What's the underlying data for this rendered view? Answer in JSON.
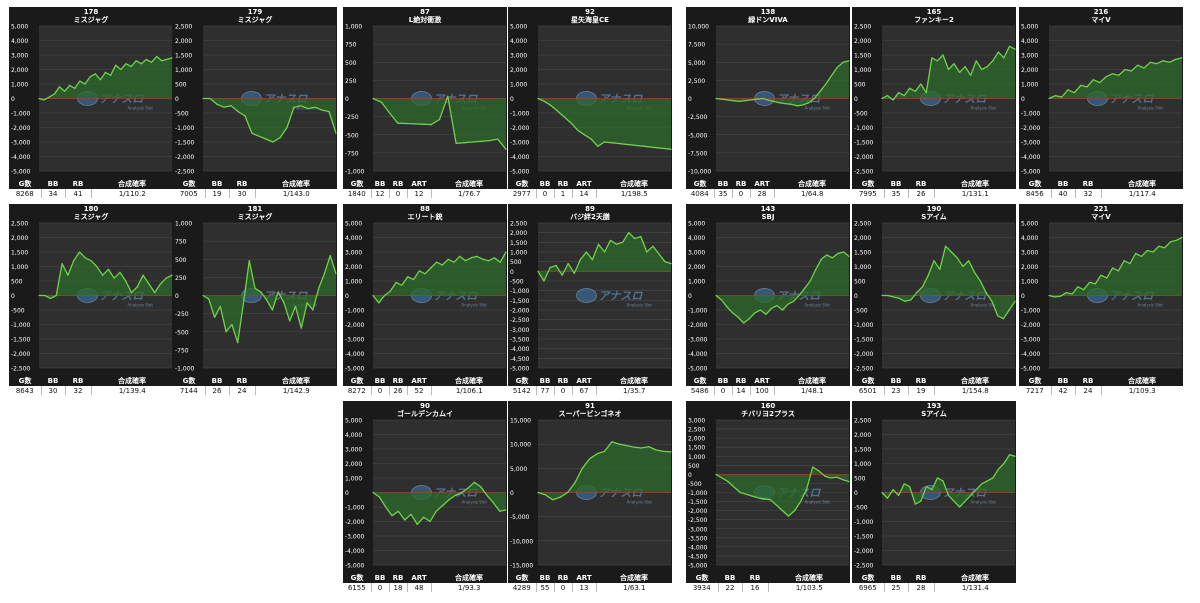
{
  "theme": {
    "panel_bg": "#1a1a1a",
    "plot_bg": "#2f2f2f",
    "grid": "#4a4a4a",
    "zero_line": "#c0392b",
    "line": "#6fd24b",
    "fill": "#2e6a2a",
    "text": "#ffffff",
    "watermark_text": "アナスロ",
    "watermark_sub": "Analysis Slot"
  },
  "chart_data": [
    {
      "type": "line",
      "machine_no": "178",
      "title": "ミスジャグ",
      "ylim": [
        -5000,
        5000
      ],
      "ystep": 1000,
      "values": [
        0,
        -100,
        100,
        300,
        800,
        500,
        900,
        700,
        1200,
        1000,
        1500,
        1700,
        1300,
        1800,
        1600,
        2300,
        2000,
        2400,
        2200,
        2600,
        2400,
        2700,
        2500,
        2900,
        2600,
        2700,
        2800
      ],
      "stats": {
        "headers": [
          "G数",
          "BB",
          "RB",
          "合成確率"
        ],
        "values": [
          "8268",
          "34",
          "41",
          "1/110.2"
        ]
      }
    },
    {
      "type": "line",
      "machine_no": "179",
      "title": "ミスジャグ",
      "ylim": [
        -2500,
        2500
      ],
      "ystep": 500,
      "values": [
        0,
        0,
        -200,
        -300,
        -250,
        -450,
        -600,
        -1200,
        -1300,
        -1400,
        -1500,
        -1350,
        -1000,
        -300,
        -250,
        -350,
        -300,
        -400,
        -450,
        -1200
      ],
      "stats": {
        "headers": [
          "G数",
          "BB",
          "RB",
          "合成確率"
        ],
        "values": [
          "7005",
          "19",
          "30",
          "1/143.0"
        ]
      }
    },
    {
      "type": "line",
      "machine_no": "87",
      "title": "L絶対衝激",
      "ylim": [
        -1000,
        1000
      ],
      "ystep": 250,
      "values": [
        0,
        -50,
        -200,
        -340,
        -345,
        -350,
        -355,
        -360,
        -290,
        30,
        -620,
        -610,
        -600,
        -590,
        -580,
        -560,
        -700
      ],
      "stats": {
        "headers": [
          "G数",
          "BB",
          "RB",
          "ART",
          "合成確率"
        ],
        "values": [
          "1840",
          "12",
          "0",
          "12",
          "1/76.7"
        ]
      }
    },
    {
      "type": "line",
      "machine_no": "92",
      "title": "星矢海皇CE",
      "ylim": [
        -5000,
        5000
      ],
      "ystep": 1000,
      "values": [
        0,
        -200,
        -500,
        -900,
        -1300,
        -1700,
        -2200,
        -2500,
        -2800,
        -3300,
        -3000,
        -3050,
        -3100,
        -3150,
        -3200,
        -3250,
        -3300,
        -3350,
        -3400,
        -3450,
        -3500
      ],
      "stats": {
        "headers": [
          "G数",
          "BB",
          "RB",
          "ART",
          "合成確率"
        ],
        "values": [
          "2977",
          "0",
          "1",
          "14",
          "1/198.5"
        ]
      }
    },
    {
      "type": "line",
      "machine_no": "138",
      "title": "緑ドンVIVA",
      "ylim": [
        -10000,
        10000
      ],
      "ystep": 2500,
      "values": [
        0,
        -100,
        -200,
        -300,
        -400,
        -300,
        -200,
        -100,
        0,
        -200,
        -400,
        -600,
        -700,
        -800,
        -1000,
        -900,
        -600,
        0,
        1000,
        2000,
        3200,
        4300,
        5000,
        5200
      ],
      "stats": {
        "headers": [
          "G数",
          "BB",
          "RB",
          "ART",
          "合成確率"
        ],
        "values": [
          "4084",
          "35",
          "0",
          "28",
          "1/64.8"
        ]
      }
    },
    {
      "type": "line",
      "machine_no": "165",
      "title": "ファンキー2",
      "ylim": [
        -2500,
        2500
      ],
      "ystep": 500,
      "values": [
        0,
        100,
        -50,
        200,
        100,
        350,
        250,
        500,
        200,
        1400,
        1300,
        1500,
        1000,
        1200,
        900,
        1100,
        800,
        1300,
        1000,
        1100,
        1300,
        1600,
        1400,
        1800,
        1700
      ],
      "stats": {
        "headers": [
          "G数",
          "BB",
          "RB",
          "合成確率"
        ],
        "values": [
          "7995",
          "35",
          "26",
          "1/131.1"
        ]
      }
    },
    {
      "type": "line",
      "machine_no": "216",
      "title": "マイV",
      "ylim": [
        -5000,
        5000
      ],
      "ystep": 1000,
      "values": [
        0,
        200,
        100,
        600,
        400,
        900,
        800,
        1300,
        1100,
        1500,
        1700,
        1600,
        2000,
        1900,
        2300,
        2100,
        2500,
        2400,
        2600,
        2500,
        2700,
        2800
      ],
      "stats": {
        "headers": [
          "G数",
          "BB",
          "RB",
          "合成確率"
        ],
        "values": [
          "8456",
          "40",
          "32",
          "1/117.4"
        ]
      }
    },
    {
      "type": "line",
      "machine_no": "180",
      "title": "ミスジャグ",
      "ylim": [
        -2500,
        2500
      ],
      "ystep": 500,
      "values": [
        0,
        0,
        -100,
        0,
        1100,
        700,
        1200,
        1500,
        1300,
        1200,
        1000,
        700,
        900,
        600,
        800,
        500,
        100,
        300,
        700,
        400,
        100,
        400,
        600,
        700
      ],
      "stats": {
        "headers": [
          "G数",
          "BB",
          "RB",
          "合成確率"
        ],
        "values": [
          "8643",
          "30",
          "32",
          "1/139.4"
        ]
      }
    },
    {
      "type": "line",
      "machine_no": "181",
      "title": "ミスジャグ",
      "ylim": [
        -1000,
        1000
      ],
      "ystep": 250,
      "values": [
        0,
        -50,
        -300,
        -150,
        -500,
        -400,
        -650,
        -100,
        480,
        100,
        50,
        -60,
        -200,
        50,
        -100,
        -350,
        -150,
        -450,
        -100,
        -200,
        100,
        300,
        550,
        300
      ],
      "stats": {
        "headers": [
          "G数",
          "BB",
          "RB",
          "合成確率"
        ],
        "values": [
          "7144",
          "26",
          "24",
          "1/142.9"
        ]
      }
    },
    {
      "type": "line",
      "machine_no": "88",
      "title": "エリート銃",
      "ylim": [
        -5000,
        5000
      ],
      "ystep": 1000,
      "values": [
        0,
        -500,
        0,
        300,
        900,
        700,
        1300,
        1100,
        1700,
        1500,
        1900,
        2300,
        2100,
        2500,
        2300,
        2700,
        2400,
        2600,
        2700,
        2500,
        2400,
        2600,
        2300,
        3000
      ],
      "stats": {
        "headers": [
          "G数",
          "BB",
          "RB",
          "ART",
          "合成確率"
        ],
        "values": [
          "8272",
          "0",
          "26",
          "52",
          "1/106.1"
        ]
      }
    },
    {
      "type": "line",
      "machine_no": "89",
      "title": "バジ絆2天膳",
      "ylim": [
        -5000,
        2500
      ],
      "ystep": 500,
      "values": [
        0,
        -500,
        200,
        300,
        -200,
        400,
        -100,
        600,
        1000,
        600,
        1400,
        1000,
        1600,
        1400,
        1500,
        2000,
        1700,
        1800,
        1000,
        1300,
        900,
        500,
        400
      ],
      "stats": {
        "headers": [
          "G数",
          "BB",
          "RB",
          "ART",
          "合成確率"
        ],
        "values": [
          "5142",
          "77",
          "0",
          "67",
          "1/35.7"
        ]
      }
    },
    {
      "type": "line",
      "machine_no": "143",
      "title": "SBJ",
      "ylim": [
        -5000,
        5000
      ],
      "ystep": 1000,
      "values": [
        0,
        -300,
        -800,
        -1200,
        -1500,
        -1900,
        -1600,
        -1200,
        -1000,
        -1300,
        -900,
        -700,
        -1000,
        -600,
        -400,
        0,
        500,
        1000,
        1800,
        2500,
        2800,
        2600,
        2900,
        3000,
        2700
      ],
      "stats": {
        "headers": [
          "G数",
          "BB",
          "RB",
          "ART",
          "合成確率"
        ],
        "values": [
          "5486",
          "0",
          "14",
          "100",
          "1/48.1"
        ]
      }
    },
    {
      "type": "line",
      "machine_no": "190",
      "title": "Sアイム",
      "ylim": [
        -2500,
        2500
      ],
      "ystep": 500,
      "values": [
        0,
        0,
        -50,
        -100,
        -200,
        -150,
        100,
        300,
        700,
        1200,
        900,
        1700,
        1500,
        1300,
        1000,
        1200,
        800,
        500,
        100,
        -200,
        -700,
        -800,
        -500,
        -200
      ],
      "stats": {
        "headers": [
          "G数",
          "BB",
          "RB",
          "合成確率"
        ],
        "values": [
          "6501",
          "23",
          "19",
          "1/154.8"
        ]
      }
    },
    {
      "type": "line",
      "machine_no": "221",
      "title": "マイV",
      "ylim": [
        -5000,
        5000
      ],
      "ystep": 1000,
      "values": [
        0,
        -100,
        -50,
        200,
        100,
        600,
        400,
        900,
        800,
        1400,
        1200,
        1900,
        1700,
        2400,
        2200,
        2900,
        2700,
        3100,
        3000,
        3400,
        3300,
        3700,
        3800,
        4000
      ],
      "stats": {
        "headers": [
          "G数",
          "BB",
          "RB",
          "合成確率"
        ],
        "values": [
          "7217",
          "42",
          "24",
          "1/109.3"
        ]
      }
    },
    {
      "type": "line",
      "machine_no": "90",
      "title": "ゴールデンカムイ",
      "ylim": [
        -5000,
        5000
      ],
      "ystep": 1000,
      "values": [
        0,
        -300,
        -1000,
        -1600,
        -1300,
        -1900,
        -1500,
        -2200,
        -1700,
        -2000,
        -1300,
        -900,
        -500,
        -200,
        0,
        300,
        700,
        400,
        -200,
        -700,
        -1300,
        -1200
      ],
      "stats": {
        "headers": [
          "G数",
          "BB",
          "RB",
          "ART",
          "合成確率"
        ],
        "values": [
          "6155",
          "0",
          "18",
          "48",
          "1/93.3"
        ]
      }
    },
    {
      "type": "line",
      "machine_no": "91",
      "title": "スーパービンゴネオ",
      "ylim": [
        -15000,
        15000
      ],
      "ystep": 5000,
      "values": [
        0,
        -500,
        -1500,
        -1000,
        0,
        2000,
        5000,
        7000,
        8000,
        8500,
        10500,
        10000,
        9700,
        9400,
        9200,
        9500,
        8800,
        8500,
        8400
      ],
      "stats": {
        "headers": [
          "G数",
          "BB",
          "RB",
          "ART",
          "合成確率"
        ],
        "values": [
          "4289",
          "55",
          "0",
          "13",
          "1/63.1"
        ]
      }
    },
    {
      "type": "line",
      "machine_no": "160",
      "title": "チバリヨ2プラス",
      "ylim": [
        -5000,
        3000
      ],
      "ystep": 500,
      "values": [
        0,
        -200,
        -400,
        -700,
        -1000,
        -1100,
        -1200,
        -1300,
        -1350,
        -1400,
        -1700,
        -2000,
        -2300,
        -2000,
        -1500,
        -800,
        400,
        200,
        -100,
        -200,
        -150,
        -300,
        -400
      ],
      "stats": {
        "headers": [
          "G数",
          "BB",
          "RB",
          "合成確率"
        ],
        "values": [
          "3934",
          "22",
          "16",
          "1/103.5"
        ]
      }
    },
    {
      "type": "line",
      "machine_no": "193",
      "title": "Sアイム",
      "ylim": [
        -2500,
        2500
      ],
      "ystep": 500,
      "values": [
        0,
        -200,
        100,
        -100,
        300,
        200,
        -400,
        -300,
        200,
        100,
        500,
        400,
        -100,
        -300,
        -500,
        -300,
        -100,
        100,
        300,
        400,
        500,
        800,
        1000,
        1300,
        1250
      ],
      "stats": {
        "headers": [
          "G数",
          "BB",
          "RB",
          "合成確率"
        ],
        "values": [
          "6965",
          "25",
          "28",
          "1/131.4"
        ]
      }
    }
  ]
}
